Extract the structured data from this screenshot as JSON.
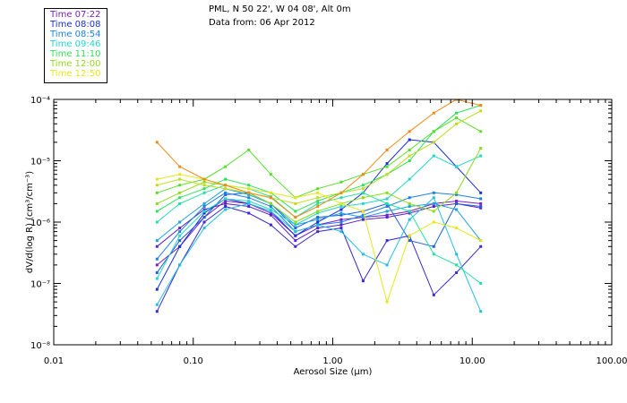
{
  "header": {
    "location": "PML, N 50 22', W 04 08', Alt 0m",
    "date_line": "Data from: 06 Apr 2012"
  },
  "legend": [
    {
      "label": "Time 07:22",
      "color": "#7a1fbf"
    },
    {
      "label": "Time 08:08",
      "color": "#1a2fd6"
    },
    {
      "label": "Time 08:54",
      "color": "#1f7fe0"
    },
    {
      "label": "Time 09:46",
      "color": "#22d6c8"
    },
    {
      "label": "Time 11:10",
      "color": "#2fe05a"
    },
    {
      "label": "Time 12:00",
      "color": "#8fdb1a"
    },
    {
      "label": "Time 12:50",
      "color": "#e6e61a"
    }
  ],
  "chart_data": {
    "type": "line",
    "x_scale": "log",
    "y_scale": "log",
    "xlabel": "Aerosol Size (μm)",
    "ylabel": "dV/d(log R) (cm³/cm⁻³)",
    "xlim": [
      0.01,
      100
    ],
    "ylim": [
      1e-08,
      0.0001
    ],
    "x_tick_labels": [
      "0.01",
      "0.10",
      "1.00",
      "10.00",
      "100.00"
    ],
    "y_tick_labels": [
      "10⁻⁸",
      "10⁻⁷",
      "10⁻⁶",
      "10⁻⁵",
      "10⁻⁴"
    ],
    "x": [
      0.055,
      0.08,
      0.12,
      0.17,
      0.25,
      0.36,
      0.54,
      0.78,
      1.15,
      1.65,
      2.45,
      3.55,
      5.3,
      7.7,
      11.5
    ],
    "series": [
      {
        "name": "s01",
        "color": "#7a1fbf",
        "values": [
          2e-07,
          4e-07,
          1.2e-06,
          2.2e-06,
          2e-06,
          1.4e-06,
          6e-07,
          9e-07,
          1.1e-06,
          1.2e-06,
          1.3e-06,
          1.5e-06,
          2e-06,
          2.2e-06,
          2e-06
        ]
      },
      {
        "name": "s02",
        "color": "#5a22c8",
        "values": [
          4e-07,
          8e-07,
          1.6e-06,
          2e-06,
          1.8e-06,
          1.3e-06,
          5e-07,
          8e-07,
          9e-07,
          1.1e-06,
          1.2e-06,
          1.4e-06,
          1.8e-06,
          2e-06,
          1.7e-06
        ]
      },
      {
        "name": "s03",
        "color": "#3a28d0",
        "values": [
          3.5e-08,
          2e-07,
          1e-06,
          1.8e-06,
          1.4e-06,
          9e-07,
          4e-07,
          7e-07,
          8e-07,
          1.1e-07,
          5e-07,
          6e-07,
          6.5e-08,
          1.5e-07,
          4e-07
        ]
      },
      {
        "name": "s04",
        "color": "#1a2fd6",
        "values": [
          8e-08,
          4e-07,
          1.4e-06,
          2.4e-06,
          2e-06,
          1.5e-06,
          6e-07,
          1e-06,
          1.6e-06,
          3e-06,
          9e-06,
          2.2e-05,
          2e-05,
          8e-06,
          3e-06
        ]
      },
      {
        "name": "s05",
        "color": "#1f5fd8",
        "values": [
          1.5e-07,
          5e-07,
          1.2e-06,
          2.8e-06,
          3e-06,
          2e-06,
          8e-07,
          1.2e-06,
          1.3e-06,
          1.5e-06,
          2e-06,
          5e-07,
          4e-07,
          2e-06,
          1.8e-06
        ]
      },
      {
        "name": "s06",
        "color": "#1f7fe0",
        "values": [
          2.5e-07,
          7e-07,
          1.8e-06,
          3e-06,
          2.5e-06,
          1.8e-06,
          7e-07,
          9e-07,
          1e-06,
          1.3e-06,
          1.8e-06,
          2.5e-06,
          3e-06,
          2.8e-06,
          2.4e-06
        ]
      },
      {
        "name": "s07",
        "color": "#1fa0e0",
        "values": [
          5e-07,
          1e-06,
          2e-06,
          3.5e-06,
          2.8e-06,
          2e-06,
          9e-07,
          1.1e-06,
          1.4e-06,
          1.2e-06,
          1.5e-06,
          1.8e-06,
          2e-06,
          1.6e-06,
          5e-07
        ]
      },
      {
        "name": "s08",
        "color": "#22c0e0",
        "values": [
          4.5e-08,
          2e-07,
          8e-07,
          1.6e-06,
          2e-06,
          1.5e-06,
          7e-07,
          9e-07,
          7e-07,
          3e-07,
          2e-07,
          1.1e-06,
          2.5e-06,
          3e-07,
          3.5e-08
        ]
      },
      {
        "name": "s09",
        "color": "#22d6c8",
        "values": [
          1.2e-07,
          6e-07,
          1.5e-06,
          2.4e-06,
          2.2e-06,
          1.6e-06,
          9e-07,
          1.4e-06,
          1.8e-06,
          2e-06,
          2.4e-06,
          5e-06,
          1.2e-05,
          8e-06,
          1.2e-05
        ]
      },
      {
        "name": "s10",
        "color": "#22e0a0",
        "values": [
          1e-06,
          2e-06,
          3e-06,
          4e-06,
          3.5e-06,
          2.6e-06,
          1.2e-06,
          2e-06,
          2.5e-06,
          3e-06,
          2e-06,
          1.5e-06,
          3e-07,
          2e-07,
          1e-07
        ]
      },
      {
        "name": "s11",
        "color": "#2fe05a",
        "values": [
          1.5e-06,
          2.5e-06,
          3.5e-06,
          5e-06,
          4e-06,
          3e-06,
          1.5e-06,
          2.2e-06,
          3e-06,
          4e-06,
          6e-06,
          1e-05,
          3e-05,
          6e-05,
          8e-05
        ]
      },
      {
        "name": "s12",
        "color": "#58de28",
        "values": [
          3e-06,
          4e-06,
          5e-06,
          8e-06,
          1.5e-05,
          6e-06,
          2.5e-06,
          3.5e-06,
          4.5e-06,
          6e-06,
          8e-06,
          1.5e-05,
          3e-05,
          5e-05,
          3e-05
        ]
      },
      {
        "name": "s13",
        "color": "#8fdb1a",
        "values": [
          2e-06,
          3e-06,
          4.5e-06,
          4e-06,
          3e-06,
          2e-06,
          1e-06,
          1.5e-06,
          2e-06,
          2.5e-06,
          3e-06,
          2e-06,
          1.5e-06,
          3e-06,
          1.6e-05
        ]
      },
      {
        "name": "s14",
        "color": "#c0dc1a",
        "values": [
          4e-06,
          5e-06,
          4e-06,
          3.5e-06,
          3e-06,
          2.5e-06,
          2e-06,
          2.5e-06,
          3e-06,
          3.5e-06,
          6e-06,
          1.2e-05,
          2e-05,
          4e-05,
          6.5e-05
        ]
      },
      {
        "name": "s15",
        "color": "#e6e61a",
        "values": [
          5e-06,
          6e-06,
          5e-06,
          4e-06,
          3.5e-06,
          3e-06,
          2.5e-06,
          3e-06,
          2e-06,
          1.5e-06,
          5e-08,
          6e-07,
          1e-06,
          8e-07,
          5e-07
        ]
      },
      {
        "name": "s16",
        "color": "#f08a1a",
        "values": [
          2e-05,
          8e-06,
          5e-06,
          4e-06,
          3e-06,
          2.5e-06,
          1.2e-06,
          1.8e-06,
          3e-06,
          6e-06,
          1.5e-05,
          3e-05,
          6e-05,
          0.0001,
          8e-05
        ]
      }
    ]
  }
}
